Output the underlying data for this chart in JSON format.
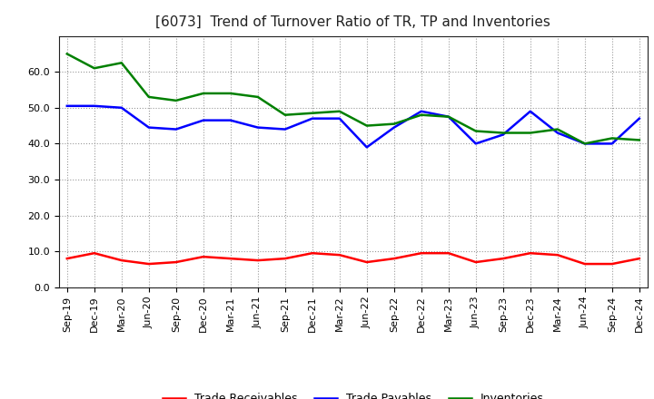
{
  "title": "[6073]  Trend of Turnover Ratio of TR, TP and Inventories",
  "x_labels": [
    "Sep-19",
    "Dec-19",
    "Mar-20",
    "Jun-20",
    "Sep-20",
    "Dec-20",
    "Mar-21",
    "Jun-21",
    "Sep-21",
    "Dec-21",
    "Mar-22",
    "Jun-22",
    "Sep-22",
    "Dec-22",
    "Mar-23",
    "Jun-23",
    "Sep-23",
    "Dec-23",
    "Mar-24",
    "Jun-24",
    "Sep-24",
    "Dec-24"
  ],
  "trade_receivables": [
    8.0,
    9.5,
    7.5,
    6.5,
    7.0,
    8.5,
    8.0,
    7.5,
    8.0,
    9.5,
    9.0,
    7.0,
    8.0,
    9.5,
    9.5,
    7.0,
    8.0,
    9.5,
    9.0,
    6.5,
    6.5,
    8.0
  ],
  "trade_payables": [
    50.5,
    50.5,
    50.0,
    44.5,
    44.0,
    46.5,
    46.5,
    44.5,
    44.0,
    47.0,
    47.0,
    39.0,
    44.5,
    49.0,
    47.5,
    40.0,
    42.5,
    49.0,
    43.0,
    40.0,
    40.0,
    47.0
  ],
  "inventories": [
    65.0,
    61.0,
    62.5,
    53.0,
    52.0,
    54.0,
    54.0,
    53.0,
    48.0,
    48.5,
    49.0,
    45.0,
    45.5,
    48.0,
    47.5,
    43.5,
    43.0,
    43.0,
    44.0,
    40.0,
    41.5,
    41.0
  ],
  "tr_color": "#ff0000",
  "tp_color": "#0000ff",
  "inv_color": "#008000",
  "legend_labels": [
    "Trade Receivables",
    "Trade Payables",
    "Inventories"
  ],
  "ylim": [
    0,
    70
  ],
  "yticks": [
    0.0,
    10.0,
    20.0,
    30.0,
    40.0,
    50.0,
    60.0
  ],
  "background_color": "#ffffff",
  "grid_color": "#aaaaaa",
  "title_fontsize": 11,
  "axis_fontsize": 8,
  "legend_fontsize": 9,
  "line_width": 1.8
}
